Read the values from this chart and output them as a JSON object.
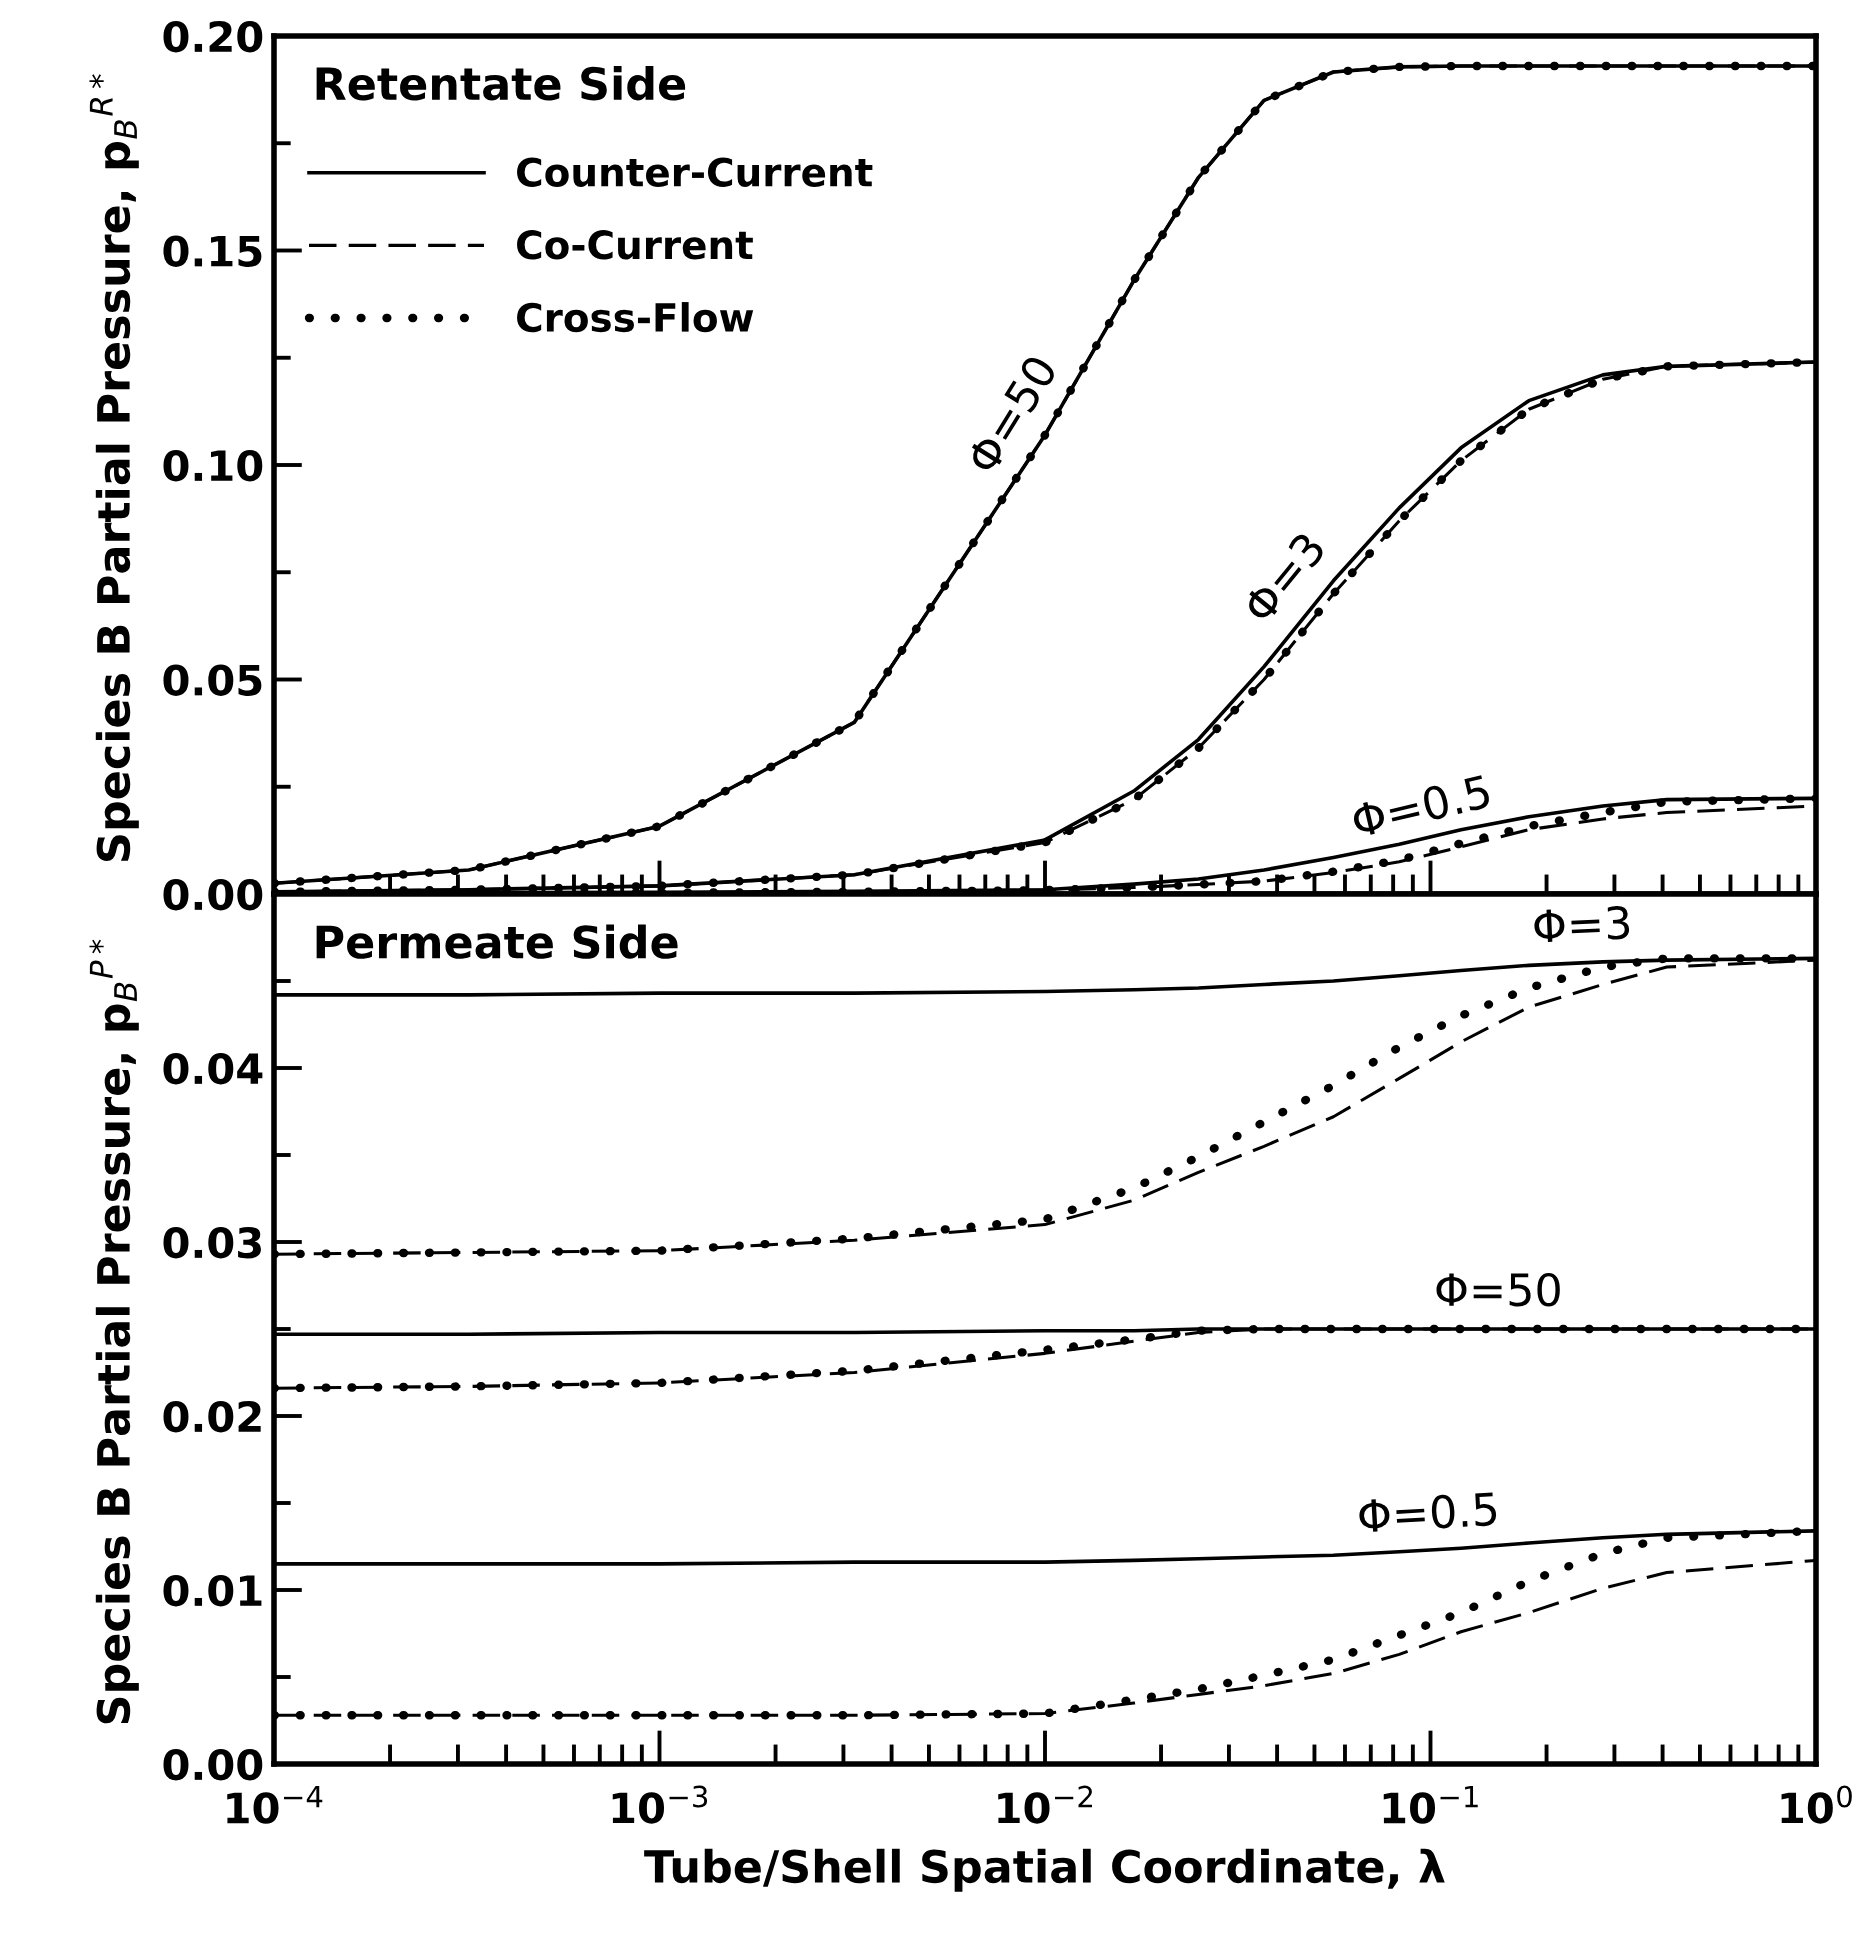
{
  "chart_data": [
    {
      "type": "line",
      "ylabel": "Species B Partial Pressure, p$_{B}$$^{R*}$",
      "log": "x",
      "xlim": [
        0.0001,
        1
      ],
      "ylim": [
        0,
        0.2
      ],
      "xticks": [
        {
          "value": 0.0001,
          "label": null
        },
        {
          "value": 0.001,
          "label": null
        },
        {
          "value": 0.01,
          "label": null
        },
        {
          "value": 0.1,
          "label": null
        },
        {
          "value": 1,
          "label": null
        }
      ],
      "yticks": [
        {
          "value": 0,
          "label": "0.00"
        },
        {
          "value": 0.025,
          "label": null
        },
        {
          "value": 0.05,
          "label": "0.05"
        },
        {
          "value": 0.075,
          "label": null
        },
        {
          "value": 0.1,
          "label": "0.10"
        },
        {
          "value": 0.125,
          "label": null
        },
        {
          "value": 0.15,
          "label": "0.15"
        },
        {
          "value": 0.175,
          "label": null
        },
        {
          "value": 0.2,
          "label": "0.20"
        }
      ],
      "tick_labels": "y",
      "grid": false,
      "legend": "top left",
      "x": [
        0.0001,
        0.00032,
        0.001,
        0.0032,
        0.01,
        0.017,
        0.025,
        0.037,
        0.056,
        0.083,
        0.12,
        0.18,
        0.28,
        0.41,
        1
      ],
      "series": [
        {
          "name": "Counter-Current",
          "color": "#000000",
          "line_style": "solid",
          "values": [
            0.0025,
            0.0056,
            0.0158,
            0.04,
            0.107,
            0.143,
            0.167,
            0.185,
            0.1916,
            0.1928,
            0.193,
            0.193,
            0.193,
            0.193,
            0.193
          ]
        },
        {
          "name": "Co-Current",
          "color": "#000000",
          "line_style": "dashed",
          "values": [
            0.0025,
            0.0056,
            0.0158,
            0.04,
            0.107,
            0.143,
            0.167,
            0.185,
            0.1916,
            0.1928,
            0.193,
            0.193,
            0.193,
            0.193,
            0.193
          ]
        },
        {
          "name": "Cross-Flow",
          "color": "#000000",
          "line_style": "dotted",
          "values": [
            0.0025,
            0.0056,
            0.0158,
            0.04,
            0.107,
            0.143,
            0.167,
            0.185,
            0.1916,
            0.1928,
            0.193,
            0.193,
            0.193,
            0.193,
            0.193
          ]
        },
        {
          "color": "#000000",
          "line_style": "solid",
          "values": [
            0.0005,
            0.001,
            0.0019,
            0.0045,
            0.0126,
            0.024,
            0.036,
            0.053,
            0.073,
            0.09,
            0.104,
            0.115,
            0.121,
            0.123,
            0.124
          ]
        },
        {
          "color": "#000000",
          "line_style": "dashed",
          "values": [
            0.0005,
            0.001,
            0.0019,
            0.0045,
            0.012,
            0.022,
            0.034,
            0.05,
            0.07,
            0.087,
            0.101,
            0.113,
            0.12,
            0.123,
            0.124
          ]
        },
        {
          "color": "#000000",
          "line_style": "dotted",
          "values": [
            0.0005,
            0.001,
            0.0019,
            0.0045,
            0.012,
            0.022,
            0.034,
            0.05,
            0.07,
            0.087,
            0.101,
            0.113,
            0.12,
            0.123,
            0.124
          ]
        },
        {
          "color": "#000000",
          "line_style": "solid",
          "values": [
            0.0002,
            0.0003,
            0.0004,
            0.0006,
            0.001,
            0.0023,
            0.0035,
            0.0056,
            0.0085,
            0.0116,
            0.015,
            0.018,
            0.0205,
            0.022,
            0.0223
          ]
        },
        {
          "color": "#000000",
          "line_style": "dashed",
          "values": [
            0.0001,
            0.0002,
            0.0003,
            0.0005,
            0.0009,
            0.0015,
            0.0022,
            0.003,
            0.005,
            0.0075,
            0.011,
            0.015,
            0.0175,
            0.019,
            0.0205
          ]
        },
        {
          "color": "#000000",
          "line_style": "dotted",
          "values": [
            0.0001,
            0.0002,
            0.0003,
            0.0005,
            0.0009,
            0.0015,
            0.0022,
            0.003,
            0.0052,
            0.0079,
            0.0118,
            0.0158,
            0.019,
            0.0215,
            0.0223
          ]
        }
      ],
      "annotations": [
        "Retentate Side",
        {
          "text": "Φ=50",
          "x": 0.01,
          "y": 0.107
        },
        {
          "text": "Φ=3",
          "x": 0.05,
          "y": 0.068
        },
        {
          "text": "Φ=0.5",
          "x": 0.1,
          "y": 0.0116
        }
      ]
    },
    {
      "type": "line",
      "xlabel": "Tube/Shell Spatial Coordinate, λ",
      "ylabel": "Species B Partial Pressure, p$_{B}$$^{P*}$",
      "log": "x",
      "xlim": [
        0.0001,
        1
      ],
      "ylim": [
        0,
        0.05
      ],
      "xticks": [
        {
          "value": 0.0001,
          "label": "10$^{−4}$"
        },
        {
          "value": 0.001,
          "label": "10$^{−3}$"
        },
        {
          "value": 0.01,
          "label": "10$^{−2}$"
        },
        {
          "value": 0.1,
          "label": "10$^{−1}$"
        },
        {
          "value": 1,
          "label": "10$^{0}$"
        }
      ],
      "yticks": [
        {
          "value": 0,
          "label": "0.00"
        },
        {
          "value": 0.005,
          "label": null
        },
        {
          "value": 0.01,
          "label": "0.01"
        },
        {
          "value": 0.015,
          "label": null
        },
        {
          "value": 0.02,
          "label": "0.02"
        },
        {
          "value": 0.025,
          "label": null
        },
        {
          "value": 0.03,
          "label": "0.03"
        },
        {
          "value": 0.035,
          "label": null
        },
        {
          "value": 0.04,
          "label": "0.04"
        },
        {
          "value": 0.045,
          "label": null
        }
      ],
      "grid": false,
      "x": [
        0.0001,
        0.00032,
        0.001,
        0.0032,
        0.01,
        0.017,
        0.025,
        0.037,
        0.056,
        0.083,
        0.12,
        0.18,
        0.28,
        0.41,
        1
      ],
      "series": [
        {
          "color": "#000000",
          "line_style": "solid",
          "values": [
            0.0442,
            0.0442,
            0.0443,
            0.0443,
            0.0444,
            0.0445,
            0.0446,
            0.0448,
            0.045,
            0.0453,
            0.0456,
            0.0459,
            0.0461,
            0.0462,
            0.0463
          ]
        },
        {
          "color": "#000000",
          "line_style": "dashed",
          "values": [
            0.0293,
            0.0294,
            0.0295,
            0.0301,
            0.031,
            0.0324,
            0.034,
            0.0355,
            0.0372,
            0.0394,
            0.0415,
            0.0435,
            0.0448,
            0.0458,
            0.0462
          ]
        },
        {
          "color": "#000000",
          "line_style": "dotted",
          "values": [
            0.0293,
            0.0294,
            0.0295,
            0.0302,
            0.0313,
            0.0331,
            0.0349,
            0.0369,
            0.039,
            0.0412,
            0.043,
            0.0446,
            0.0458,
            0.0463,
            0.0463
          ]
        },
        {
          "color": "#000000",
          "line_style": "solid",
          "values": [
            0.0247,
            0.0247,
            0.0248,
            0.0248,
            0.0249,
            0.0249,
            0.025,
            0.025,
            0.025,
            0.025,
            0.025,
            0.025,
            0.025,
            0.025,
            0.025
          ]
        },
        {
          "color": "#000000",
          "line_style": "dashed",
          "values": [
            0.0216,
            0.0217,
            0.0219,
            0.0225,
            0.0236,
            0.0243,
            0.0248,
            0.025,
            0.025,
            0.025,
            0.025,
            0.025,
            0.025,
            0.025,
            0.025
          ]
        },
        {
          "color": "#000000",
          "line_style": "dotted",
          "values": [
            0.0216,
            0.0217,
            0.0219,
            0.0226,
            0.0238,
            0.0244,
            0.0249,
            0.025,
            0.025,
            0.025,
            0.025,
            0.025,
            0.025,
            0.025,
            0.025
          ]
        },
        {
          "color": "#000000",
          "line_style": "solid",
          "values": [
            0.0115,
            0.0115,
            0.0115,
            0.0116,
            0.0116,
            0.0117,
            0.0118,
            0.0119,
            0.012,
            0.0122,
            0.0124,
            0.0127,
            0.013,
            0.0132,
            0.0134
          ]
        },
        {
          "color": "#000000",
          "line_style": "dashed",
          "values": [
            0.0028,
            0.0028,
            0.0028,
            0.0028,
            0.0029,
            0.0035,
            0.004,
            0.0045,
            0.0052,
            0.0063,
            0.0076,
            0.0087,
            0.0101,
            0.011,
            0.0117
          ]
        },
        {
          "color": "#000000",
          "line_style": "dotted",
          "values": [
            0.0028,
            0.0028,
            0.0028,
            0.0028,
            0.0029,
            0.0037,
            0.0043,
            0.0051,
            0.006,
            0.0074,
            0.0087,
            0.0105,
            0.0121,
            0.013,
            0.0134
          ]
        }
      ],
      "annotations": [
        "Permeate Side",
        {
          "text": "Φ=3",
          "x": 0.25,
          "y": 0.046
        },
        {
          "text": "Φ=50",
          "x": 0.15,
          "y": 0.025
        },
        {
          "text": "Φ=0.5",
          "x": 0.1,
          "y": 0.0122
        }
      ]
    }
  ]
}
